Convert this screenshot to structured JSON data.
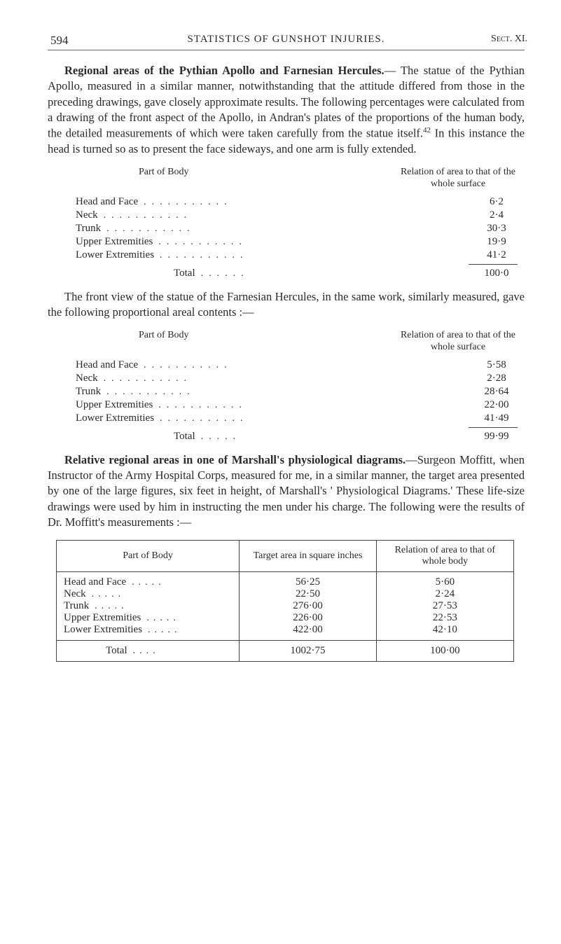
{
  "page_number": "594",
  "running_header": "STATISTICS OF GUNSHOT INJURIES.",
  "sect": "Sect. XI.",
  "para1_lead": "Regional areas of the Pythian Apollo and Farnesian Hercules.",
  "para1_body": "— The statue of the Pythian Apollo, measured in a similar manner, notwithstanding that the attitude differed from those in the preceding drawings, gave closely approximate results. The following percentages were calculated from a drawing of the front aspect of the Apollo, in Andran's plates of the proportions of the human body, the detailed measurements of which were taken carefully from the statue itself.",
  "para1_sup": "42",
  "para1_tail": " In this instance the head is turned so as to present the face sideways, and one arm is fully extended.",
  "stat1_header_left": "Part of Body",
  "stat1_header_right": "Relation of area to that of the whole surface",
  "stat1": {
    "rows": [
      {
        "label": "Head and Face",
        "value": "6·2"
      },
      {
        "label": "Neck",
        "value": "2·4"
      },
      {
        "label": "Trunk",
        "value": "30·3"
      },
      {
        "label": "Upper Extremities",
        "value": "19·9"
      },
      {
        "label": "Lower Extremities",
        "value": "41·2"
      }
    ],
    "total_label": "Total",
    "total_value": "100·0"
  },
  "para2": "The front view of the statue of the Farnesian Hercules, in the same work, similarly measured, gave the following proportional areal contents :—",
  "stat2_header_left": "Part of Body",
  "stat2_header_right": "Relation of area to that of the whole surface",
  "stat2": {
    "rows": [
      {
        "label": "Head and Face",
        "value": "5·58"
      },
      {
        "label": "Neck",
        "value": "2·28"
      },
      {
        "label": "Trunk",
        "value": "28·64"
      },
      {
        "label": "Upper Extremities",
        "value": "22·00"
      },
      {
        "label": "Lower Extremities",
        "value": "41·49"
      }
    ],
    "total_label": "Total",
    "total_value": "99·99"
  },
  "para3_lead": "Relative regional areas in one of Marshall's physiological diagrams.",
  "para3_body": "—Surgeon Moffitt, when Instructor of the Army Hospital Corps, measured for me, in a similar manner, the target area presented by one of the large figures, six feet in height, of Marshall's ' Physiological Diagrams.' These life-size drawings were used by him in instructing the men under his charge. The following were the results of Dr. Moffitt's measurements :—",
  "table": {
    "headers": [
      "Part of Body",
      "Target area in square inches",
      "Relation of area to that of whole body"
    ],
    "rows": [
      {
        "label": "Head and Face",
        "target": "56·25",
        "rel": "5·60"
      },
      {
        "label": "Neck",
        "target": "22·50",
        "rel": "2·24"
      },
      {
        "label": "Trunk",
        "target": "276·00",
        "rel": "27·53"
      },
      {
        "label": "Upper Extremities",
        "target": "226·00",
        "rel": "22·53"
      },
      {
        "label": "Lower Extremities",
        "target": "422·00",
        "rel": "42·10"
      }
    ],
    "total_label": "Total",
    "total_target": "1002·75",
    "total_rel": "100·00"
  }
}
